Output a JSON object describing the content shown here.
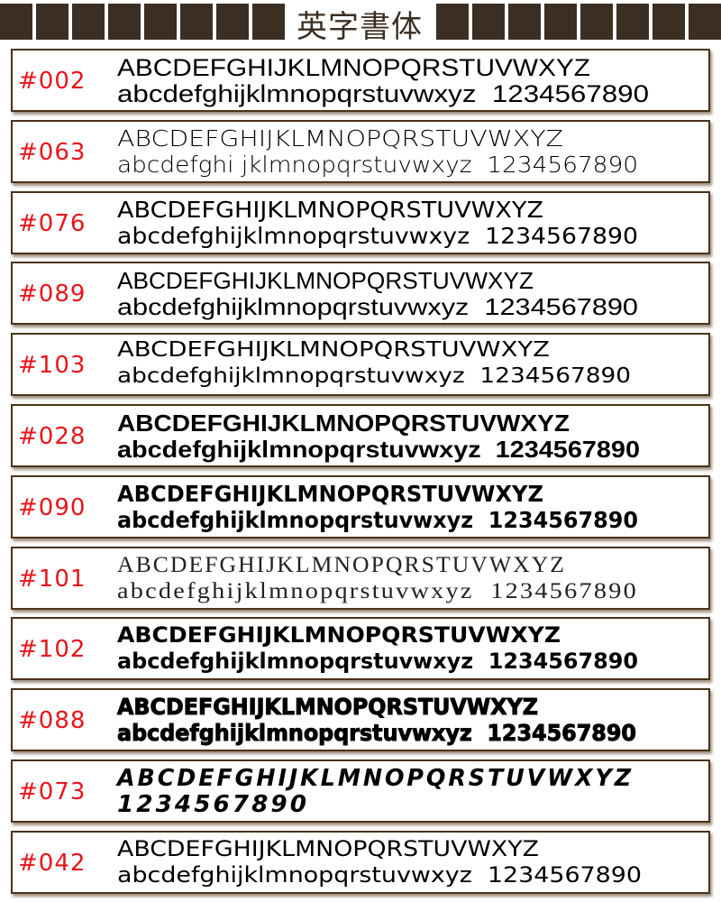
{
  "header": {
    "title": "英字書体",
    "color": "#3b2e22"
  },
  "code_color": "#e8151b",
  "samples": [
    {
      "code": "#002",
      "line1": "ABCDEFGHIJKLMNOPQRSTUVWXYZ",
      "line2": "abcdefghijklmnopqrstuvwxyz  1234567890"
    },
    {
      "code": "#063",
      "line1": "ABCDEFGHIJKLMNOPQRSTUVWXYZ",
      "line2": "abcdefghi jklmnopqrstuvwxyz  1234567890"
    },
    {
      "code": "#076",
      "line1": "ABCDEFGHIJKLMNOPQRSTUVWXYZ",
      "line2": "abcdefghijklmnopqrstuvwxyz  1234567890"
    },
    {
      "code": "#089",
      "line1": "ABCDEFGHIJKLMNOPQRSTUVWXYZ",
      "line2": "abcdefghijklmnopqrstuvwxyz  1234567890"
    },
    {
      "code": "#103",
      "line1": "ABCDEFGHIJKLMNOPQRSTUVWXYZ",
      "line2": "abcdefghijklmnopqrstuvwxyz  1234567890"
    },
    {
      "code": "#028",
      "line1": "ABCDEFGHIJKLMNOPQRSTUVWXYZ",
      "line2": "abcdefghijklmnopqrstuvwxyz  1234567890"
    },
    {
      "code": "#090",
      "line1": "ABCDEFGHIJKLMNOPQRSTUVWXYZ",
      "line2": "abcdefghijklmnopqrstuvwxyz  1234567890"
    },
    {
      "code": "#101",
      "line1": "ABCDEFGHIJKLMNOPQRSTUVWXYZ",
      "line2": "abcdefghijklmnopqrstuvwxyz  1234567890"
    },
    {
      "code": "#102",
      "line1": "ABCDEFGHIJKLMNOPQRSTUVWXYZ",
      "line2": "abcdefghijklmnopqrstuvwxyz  1234567890"
    },
    {
      "code": "#088",
      "line1": "ABCDEFGHIJKLMNOPQRSTUVWXYZ",
      "line2": "abcdefghijklmnopqrstuvwxyz  1234567890"
    },
    {
      "code": "#073",
      "line1": "ABCDEFGHIJKLMNOPQRSTUVWXYZ",
      "line2": "1234567890"
    },
    {
      "code": "#042",
      "line1": "ABCDEFGHIJKLMNOPQRSTUVWXYZ",
      "line2": "abcdefghijklmnopqrstuvwxyz  1234567890"
    }
  ]
}
